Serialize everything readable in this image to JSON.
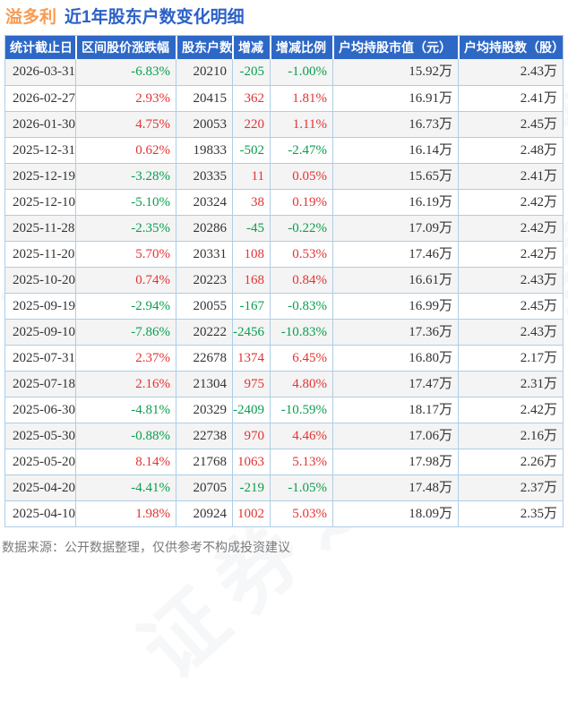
{
  "title": {
    "stock": "溢多利",
    "text": "近1年股东户数变化明细"
  },
  "watermark": {
    "text": "证券之星"
  },
  "footer": {
    "note": "数据来源：公开数据整理，仅供参考不构成投资建议"
  },
  "colors": {
    "header_bg": "#2e68c6",
    "title_orange": "#f99b52",
    "title_blue": "#2b61c6",
    "up_red": "#e33333",
    "down_green": "#0a9e4f",
    "border_blue": "#aecde6",
    "row_alt_gray": "#f4f4f4",
    "footer_gray": "#7a7a7a"
  },
  "chart_data": {
    "type": "table",
    "title": "溢多利 近1年股东户数变化明细",
    "columns": [
      "统计截止日",
      "区间股价涨跌幅",
      "股东户数",
      "增减",
      "增减比例",
      "户均持股市值（元）",
      "户均持股数（股）"
    ],
    "column_keys": [
      "date",
      "price-change",
      "holder-count",
      "change",
      "change-ratio",
      "avg-market-value",
      "avg-shares"
    ],
    "signed_columns": [
      1,
      3,
      4
    ],
    "rows": [
      [
        "2026-03-31",
        "-6.83%",
        "20210",
        "-205",
        "-1.00%",
        "15.92万",
        "2.43万"
      ],
      [
        "2026-02-27",
        "2.93%",
        "20415",
        "362",
        "1.81%",
        "16.91万",
        "2.41万"
      ],
      [
        "2026-01-30",
        "4.75%",
        "20053",
        "220",
        "1.11%",
        "16.73万",
        "2.45万"
      ],
      [
        "2025-12-31",
        "0.62%",
        "19833",
        "-502",
        "-2.47%",
        "16.14万",
        "2.48万"
      ],
      [
        "2025-12-19",
        "-3.28%",
        "20335",
        "11",
        "0.05%",
        "15.65万",
        "2.41万"
      ],
      [
        "2025-12-10",
        "-5.10%",
        "20324",
        "38",
        "0.19%",
        "16.19万",
        "2.42万"
      ],
      [
        "2025-11-28",
        "-2.35%",
        "20286",
        "-45",
        "-0.22%",
        "17.09万",
        "2.42万"
      ],
      [
        "2025-11-20",
        "5.70%",
        "20331",
        "108",
        "0.53%",
        "17.46万",
        "2.42万"
      ],
      [
        "2025-10-20",
        "0.74%",
        "20223",
        "168",
        "0.84%",
        "16.61万",
        "2.43万"
      ],
      [
        "2025-09-19",
        "-2.94%",
        "20055",
        "-167",
        "-0.83%",
        "16.99万",
        "2.45万"
      ],
      [
        "2025-09-10",
        "-7.86%",
        "20222",
        "-2456",
        "-10.83%",
        "17.36万",
        "2.43万"
      ],
      [
        "2025-07-31",
        "2.37%",
        "22678",
        "1374",
        "6.45%",
        "16.80万",
        "2.17万"
      ],
      [
        "2025-07-18",
        "2.16%",
        "21304",
        "975",
        "4.80%",
        "17.47万",
        "2.31万"
      ],
      [
        "2025-06-30",
        "-4.81%",
        "20329",
        "-2409",
        "-10.59%",
        "18.17万",
        "2.42万"
      ],
      [
        "2025-05-30",
        "-0.88%",
        "22738",
        "970",
        "4.46%",
        "17.06万",
        "2.16万"
      ],
      [
        "2025-05-20",
        "8.14%",
        "21768",
        "1063",
        "5.13%",
        "17.98万",
        "2.26万"
      ],
      [
        "2025-04-20",
        "-4.41%",
        "20705",
        "-219",
        "-1.05%",
        "17.48万",
        "2.37万"
      ],
      [
        "2025-04-10",
        "1.98%",
        "20924",
        "1002",
        "5.03%",
        "18.09万",
        "2.35万"
      ]
    ]
  }
}
